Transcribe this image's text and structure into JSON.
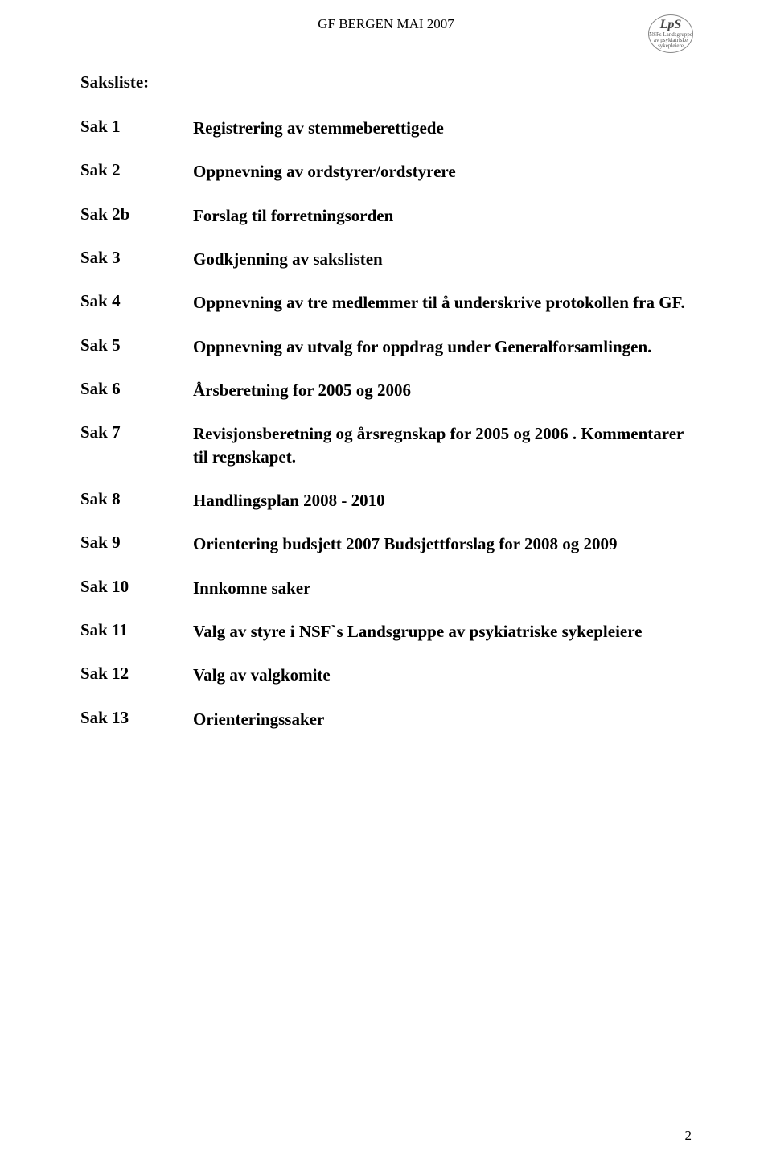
{
  "header": "GF  BERGEN MAI 2007",
  "logo": {
    "brand": "LpS",
    "line1": "NSFs Landsgruppe",
    "line2": "av psykiatriske",
    "line3": "sykepleiere"
  },
  "title": "Saksliste:",
  "items": [
    {
      "label": "Sak 1",
      "desc": "Registrering av stemmeberettigede"
    },
    {
      "label": "Sak 2",
      "desc": "Oppnevning av ordstyrer/ordstyrere"
    },
    {
      "label": "Sak 2b",
      "desc": "Forslag til forretningsorden"
    },
    {
      "label": "Sak 3",
      "desc": "Godkjenning av sakslisten"
    },
    {
      "label": "Sak 4",
      "desc": "Oppnevning av tre medlemmer til å underskrive protokollen fra GF."
    },
    {
      "label": "Sak 5",
      "desc": "Oppnevning av utvalg for oppdrag under Generalforsamlingen."
    },
    {
      "label": "Sak 6",
      "desc": "Årsberetning for 2005 og 2006"
    },
    {
      "label": "Sak 7",
      "desc": "Revisjonsberetning og årsregnskap for 2005 og 2006 . Kommentarer til regnskapet."
    },
    {
      "label": "Sak 8",
      "desc": "Handlingsplan 2008 - 2010"
    },
    {
      "label": "Sak 9",
      "desc": "Orientering budsjett 2007  Budsjettforslag for 2008 og 2009"
    },
    {
      "label": "Sak 10",
      "desc": "Innkomne saker"
    },
    {
      "label": "Sak 11",
      "desc": "Valg av styre i NSF`s Landsgruppe av psykiatriske sykepleiere"
    },
    {
      "label": "Sak 12",
      "desc": "Valg av valgkomite"
    },
    {
      "label": "Sak 13",
      "desc": "Orienteringssaker"
    }
  ],
  "pageNumber": "2",
  "colors": {
    "text": "#000000",
    "background": "#ffffff",
    "logoBorder": "#888888",
    "logoText": "#555555"
  },
  "fonts": {
    "body": "Times New Roman",
    "titleSize": 21,
    "headerSize": 17
  }
}
